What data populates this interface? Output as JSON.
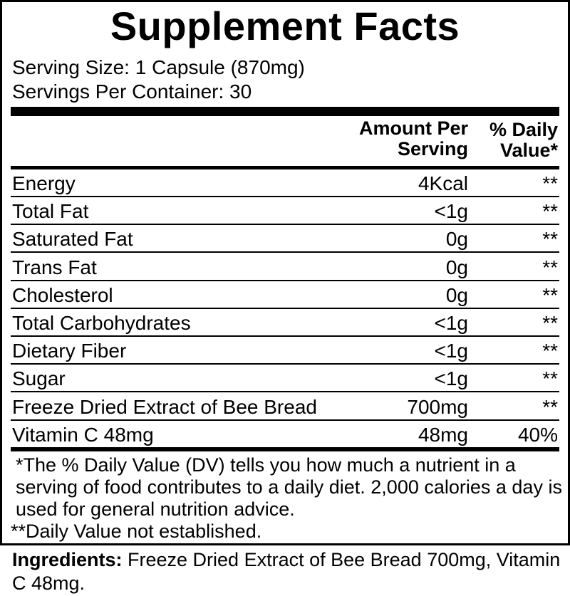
{
  "title": "Supplement Facts",
  "serving_size": "Serving Size: 1 Capsule (870mg)",
  "servings_per_container": "Servings Per Container: 30",
  "headers": {
    "amount_line1": "Amount Per",
    "amount_line2": "Serving",
    "dv_line1": "% Daily",
    "dv_line2": "Value*"
  },
  "rows": [
    {
      "name": "Energy",
      "amount": "4Kcal",
      "dv": "**"
    },
    {
      "name": "Total Fat",
      "amount": "<1g",
      "dv": "**"
    },
    {
      "name": "Saturated Fat",
      "amount": "0g",
      "dv": "**"
    },
    {
      "name": "Trans Fat",
      "amount": "0g",
      "dv": "**"
    },
    {
      "name": "Cholesterol",
      "amount": "0g",
      "dv": "**"
    },
    {
      "name": "Total Carbohydrates",
      "amount": "<1g",
      "dv": "**"
    },
    {
      "name": "Dietary Fiber",
      "amount": "<1g",
      "dv": "**"
    },
    {
      "name": "Sugar",
      "amount": "<1g",
      "dv": "**"
    },
    {
      "name": "Freeze Dried Extract of Bee Bread",
      "amount": "700mg",
      "dv": "**"
    },
    {
      "name": "Vitamin C 48mg",
      "amount": "48mg",
      "dv": "40%"
    }
  ],
  "footnote_dv": "*The % Daily Value (DV) tells you how much a nutrient in a serving of food contributes to a daily diet. 2,000 calories a day is used for general nutrition advice.",
  "footnote_not_established": "**Daily Value not established.",
  "ingredients": {
    "label": "Ingredients:",
    "text": " Freeze Dried Extract of Bee Bread 700mg, Vitamin C 48mg."
  }
}
